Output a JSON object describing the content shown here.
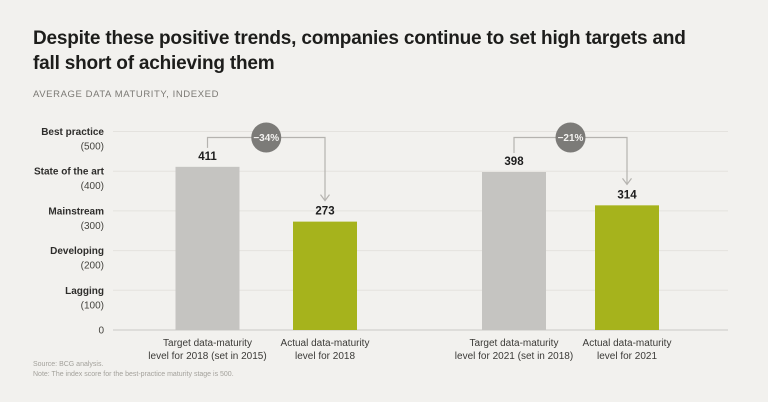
{
  "header": {
    "title": "Despite these positive trends, companies continue to set high targets and fall short of achieving them",
    "title_lines": [
      "Despite these positive trends, companies continue to set high targets and",
      "fall short of achieving them"
    ],
    "subtitle": "AVERAGE DATA MATURITY, INDEXED"
  },
  "chart_data": {
    "type": "bar",
    "title": "Despite these positive trends, companies continue to set high targets and fall short of achieving them",
    "subtitle": "AVERAGE DATA MATURITY, INDEXED",
    "categories": [
      "Target data-maturity level for 2018 (set in 2015)",
      "Actual data-maturity level for 2018",
      "Target data-maturity level for 2021 (set in 2018)",
      "Actual data-maturity level for 2021"
    ],
    "category_lines": [
      [
        "Target data-maturity",
        "level for 2018 (set in 2015)"
      ],
      [
        "Actual data-maturity",
        "level for 2018"
      ],
      [
        "Target data-maturity",
        "level for 2021 (set in 2018)"
      ],
      [
        "Actual data-maturity",
        "level for 2021"
      ]
    ],
    "values": [
      411,
      273,
      398,
      314
    ],
    "bar_colors": [
      "#c5c4c1",
      "#a6b31c",
      "#c5c4c1",
      "#a6b31c"
    ],
    "ylim": [
      0,
      500
    ],
    "grid": true,
    "legend": null,
    "y_axis_stages": [
      {
        "name": "Best practice",
        "value_label": "(500)",
        "value": 500
      },
      {
        "name": "State of the art",
        "value_label": "(400)",
        "value": 400
      },
      {
        "name": "Mainstream",
        "value_label": "(300)",
        "value": 300
      },
      {
        "name": "Developing",
        "value_label": "(200)",
        "value": 200
      },
      {
        "name": "Lagging",
        "value_label": "(100)",
        "value": 100
      },
      {
        "name": "",
        "value_label": "0",
        "value": 0
      }
    ],
    "annotations": [
      {
        "label": "−34%",
        "from_index": 0,
        "to_index": 1
      },
      {
        "label": "−21%",
        "from_index": 2,
        "to_index": 3
      }
    ]
  },
  "footer": {
    "source": "Source: BCG analysis.",
    "note": "Note: The index score for the best-practice maturity stage is 500."
  },
  "colors": {
    "background": "#f2f1ee",
    "title_text": "#1d1d1b",
    "subtitle_text": "#7b7974",
    "gridline": "#e4e2de",
    "zero_line": "#cbc9c5",
    "target_bar": "#c5c4c1",
    "actual_bar": "#a6b31c",
    "bracket_line": "#b5b3af",
    "annotation_circle": "#7c7b78",
    "annotation_text": "#f4f3f1",
    "stage_name_text": "#2e2d2b",
    "stage_value_text": "#45443f",
    "value_label_text": "#1e1e1e",
    "category_text": "#3b3a37",
    "footnote_text": "#a3a19b"
  }
}
